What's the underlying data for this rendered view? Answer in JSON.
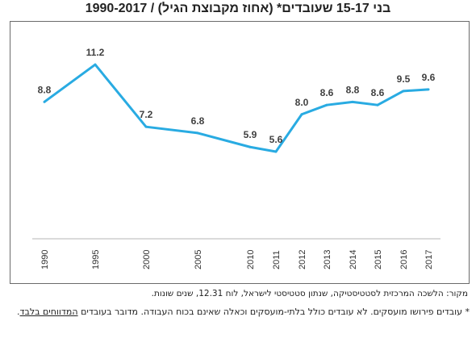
{
  "title": "בני 15-17 שעובדים* (אחוז מקבוצת הגיל) / 1990-2017",
  "chart_data": {
    "type": "line",
    "x": [
      "1990",
      "1995",
      "2000",
      "2005",
      "2010",
      "2011",
      "2012",
      "2013",
      "2014",
      "2015",
      "2016",
      "2017"
    ],
    "series": [
      {
        "values": [
          8.8,
          11.2,
          7.2,
          6.8,
          5.9,
          5.6,
          8.0,
          8.6,
          8.8,
          8.6,
          9.5,
          9.6
        ],
        "labels": [
          "8.8",
          "11.2",
          "7.2",
          "6.8",
          "5.9",
          "5.6",
          "8.0",
          "8.6",
          "8.8",
          "8.6",
          "9.5",
          "9.6"
        ],
        "color": "#29abe2"
      }
    ],
    "ylim": [
      0,
      12.5
    ],
    "grid": false,
    "legend": "none"
  },
  "source": "מקור: הלשכה המרכזית לסטטיסטיקה, שנתון סטטיסטי לישראל, לוח 12.31, שנים שונות.",
  "footnote": {
    "marker": "*",
    "text": " עובדים פירושו מועסקים. לא עובדים כולל בלתי-מועסקים וכאלה שאינם בכוח העבודה. מדובר בעובדים ",
    "underlined": "המדווחים בלבד",
    "end": "."
  }
}
